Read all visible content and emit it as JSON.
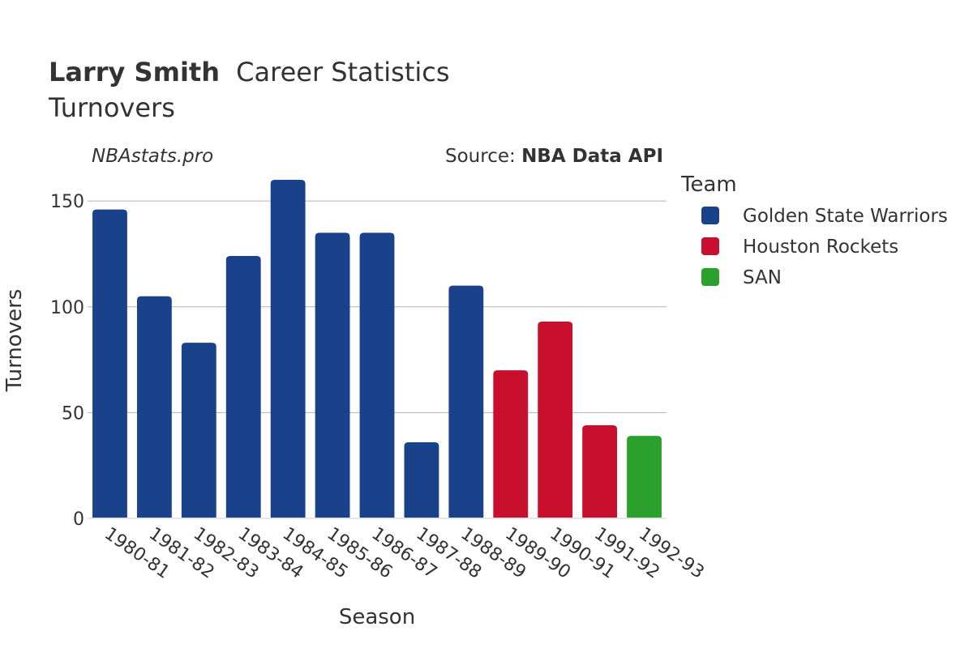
{
  "header": {
    "title_bold": "Larry Smith",
    "title_rest": "Career Statistics",
    "subtitle": "Turnovers",
    "watermark": "NBAstats.pro",
    "source_prefix": "Source: ",
    "source_name": "NBA Data API"
  },
  "legend": {
    "title": "Team",
    "items": [
      {
        "label": "Golden State Warriors",
        "color": "#1a428a"
      },
      {
        "label": "Houston Rockets",
        "color": "#c8102e"
      },
      {
        "label": "SAN",
        "color": "#2ca02c"
      }
    ]
  },
  "chart_data": {
    "type": "bar",
    "xlabel": "Season",
    "ylabel": "Turnovers",
    "ylim": [
      0,
      160
    ],
    "yticks": [
      0,
      50,
      100,
      150
    ],
    "grid": true,
    "legend_position": "right",
    "categories": [
      "1980-81",
      "1981-82",
      "1982-83",
      "1983-84",
      "1984-85",
      "1985-86",
      "1986-87",
      "1987-88",
      "1988-89",
      "1989-90",
      "1990-91",
      "1991-92",
      "1992-93"
    ],
    "values": [
      146,
      105,
      83,
      124,
      160,
      135,
      135,
      36,
      110,
      70,
      93,
      44,
      39
    ],
    "teams": [
      "Golden State Warriors",
      "Golden State Warriors",
      "Golden State Warriors",
      "Golden State Warriors",
      "Golden State Warriors",
      "Golden State Warriors",
      "Golden State Warriors",
      "Golden State Warriors",
      "Golden State Warriors",
      "Houston Rockets",
      "Houston Rockets",
      "Houston Rockets",
      "SAN"
    ]
  }
}
